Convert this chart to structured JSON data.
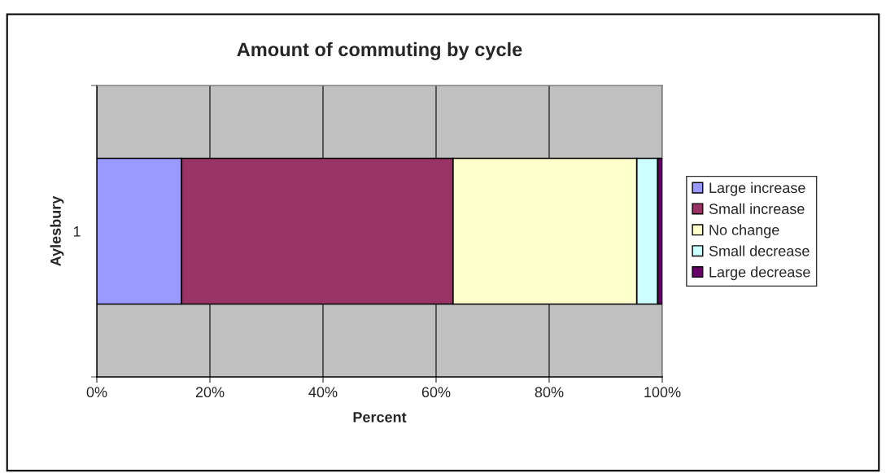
{
  "chart_data": {
    "type": "bar",
    "orientation": "horizontal",
    "stacked": true,
    "title": "Amount of commuting by cycle",
    "xlabel": "Percent",
    "ylabel": "Aylesbury",
    "categories": [
      "1"
    ],
    "series": [
      {
        "name": "Large increase",
        "color": "#9999ff",
        "values": [
          15
        ]
      },
      {
        "name": "Small increase",
        "color": "#993366",
        "values": [
          48
        ]
      },
      {
        "name": "No change",
        "color": "#ffffcc",
        "values": [
          32.5
        ]
      },
      {
        "name": "Small decrease",
        "color": "#ccffff",
        "values": [
          3.7
        ]
      },
      {
        "name": "Large decrease",
        "color": "#660066",
        "values": [
          0.8
        ]
      }
    ],
    "xlim": [
      0,
      100
    ],
    "xticks": [
      {
        "value": 0,
        "label": "0%"
      },
      {
        "value": 20,
        "label": "20%"
      },
      {
        "value": 40,
        "label": "40%"
      },
      {
        "value": 60,
        "label": "60%"
      },
      {
        "value": 80,
        "label": "80%"
      },
      {
        "value": 100,
        "label": "100%"
      }
    ],
    "grid": "x",
    "legend": "right"
  }
}
